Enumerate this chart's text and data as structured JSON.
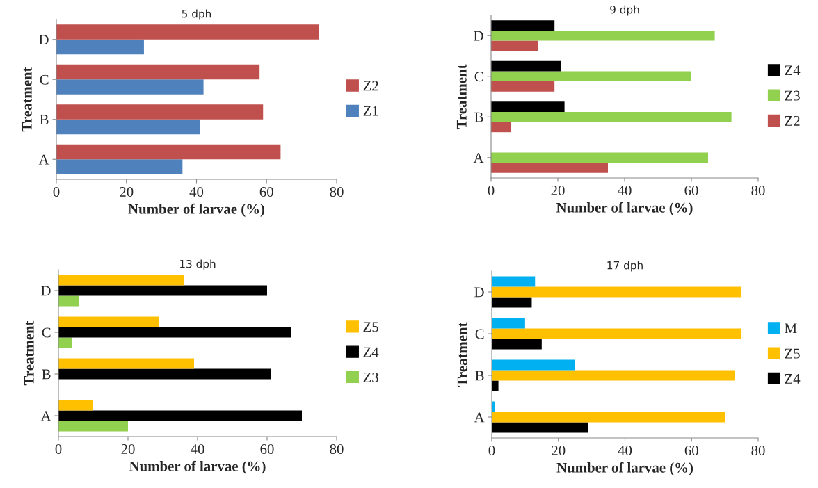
{
  "chart_data": [
    {
      "type": "bar",
      "orientation": "horizontal",
      "title": "5 dph",
      "xlabel": "Number of larvae (%)",
      "ylabel": "Treatment",
      "categories": [
        "D",
        "C",
        "B",
        "A"
      ],
      "xlim": [
        0,
        80
      ],
      "xticks": [
        0,
        20,
        40,
        60,
        80
      ],
      "grid": false,
      "legend": "right",
      "series": [
        {
          "name": "Z1",
          "color": "#4f81bd",
          "values": [
            25,
            42,
            41,
            36
          ]
        },
        {
          "name": "Z2",
          "color": "#c0504d",
          "values": [
            75,
            58,
            59,
            64
          ]
        }
      ]
    },
    {
      "type": "bar",
      "orientation": "horizontal",
      "title": "9 dph",
      "xlabel": "Number of larvae (%)",
      "ylabel": "Treatment",
      "categories": [
        "D",
        "C",
        "B",
        "A"
      ],
      "xlim": [
        0,
        80
      ],
      "xticks": [
        0,
        20,
        40,
        60,
        80
      ],
      "grid": false,
      "legend": "right",
      "series": [
        {
          "name": "Z2",
          "color": "#c0504d",
          "values": [
            14,
            19,
            6,
            35
          ]
        },
        {
          "name": "Z3",
          "color": "#92d050",
          "values": [
            67,
            60,
            72,
            65
          ]
        },
        {
          "name": "Z4",
          "color": "#000000",
          "values": [
            19,
            21,
            22,
            0
          ]
        }
      ]
    },
    {
      "type": "bar",
      "orientation": "horizontal",
      "title": "13 dph",
      "xlabel": "Number of larvae (%)",
      "ylabel": "Treatment",
      "categories": [
        "D",
        "C",
        "B",
        "A"
      ],
      "xlim": [
        0,
        80
      ],
      "xticks": [
        0,
        20,
        40,
        60,
        80
      ],
      "grid": false,
      "legend": "right",
      "series": [
        {
          "name": "Z3",
          "color": "#92d050",
          "values": [
            6,
            4,
            0,
            20
          ]
        },
        {
          "name": "Z4",
          "color": "#000000",
          "values": [
            60,
            67,
            61,
            70
          ]
        },
        {
          "name": "Z5",
          "color": "#ffc000",
          "values": [
            36,
            29,
            39,
            10
          ]
        }
      ]
    },
    {
      "type": "bar",
      "orientation": "horizontal",
      "title": "17 dph",
      "xlabel": "Number of larvae (%)",
      "ylabel": "Treatment",
      "categories": [
        "D",
        "C",
        "B",
        "A"
      ],
      "xlim": [
        0,
        80
      ],
      "xticks": [
        0,
        20,
        40,
        60,
        80
      ],
      "grid": false,
      "legend": "right",
      "series": [
        {
          "name": "Z4",
          "color": "#000000",
          "values": [
            12,
            15,
            2,
            29
          ]
        },
        {
          "name": "Z5",
          "color": "#ffc000",
          "values": [
            75,
            75,
            73,
            70
          ]
        },
        {
          "name": "M",
          "color": "#00b0f0",
          "values": [
            13,
            10,
            25,
            1
          ]
        }
      ]
    }
  ]
}
